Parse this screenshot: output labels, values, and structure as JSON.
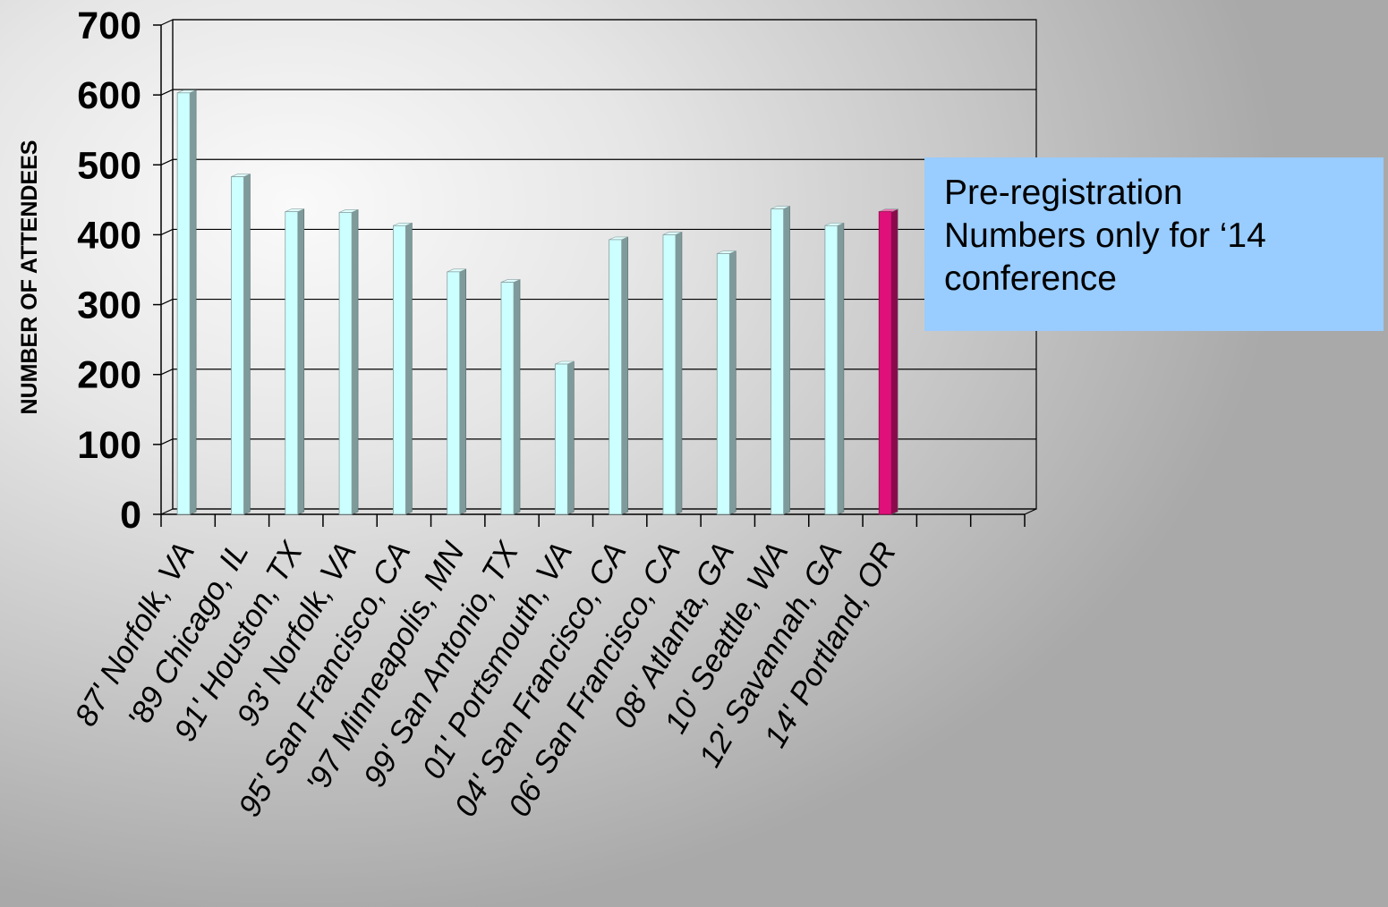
{
  "chart_data": {
    "type": "bar",
    "categories": [
      "87' Norfolk, VA",
      "'89 Chicago, IL",
      "91' Houston, TX",
      "93' Norfolk, VA",
      "95' San Francisco, CA",
      "'97 Minneapolis, MN",
      "99' San Antonio, TX",
      "01' Portsmouth, VA",
      "04' San Francisco, CA",
      "06' San Francisco, CA",
      "08' Atlanta, GA",
      "10' Seattle, WA",
      "12' Savannah, GA",
      "14' Portland, OR",
      "",
      ""
    ],
    "values": [
      603,
      483,
      433,
      432,
      413,
      347,
      332,
      215,
      393,
      400,
      373,
      437,
      413,
      433,
      null,
      null
    ],
    "highlight_index": 13,
    "ylabel": "NUMBER OF ATTENDEES",
    "xlabel": "",
    "ylim": [
      0,
      700
    ],
    "yticks": [
      0,
      100,
      200,
      300,
      400,
      500,
      600,
      700
    ],
    "grid": true,
    "bar_color": "#ccffff",
    "bar_side_color": "#7f9a9a",
    "highlight_color": "#e0107a",
    "highlight_side_color": "#8c0a4b"
  },
  "annotation": {
    "text": "Pre-registration\nNumbers only for ‘14\nconference"
  }
}
